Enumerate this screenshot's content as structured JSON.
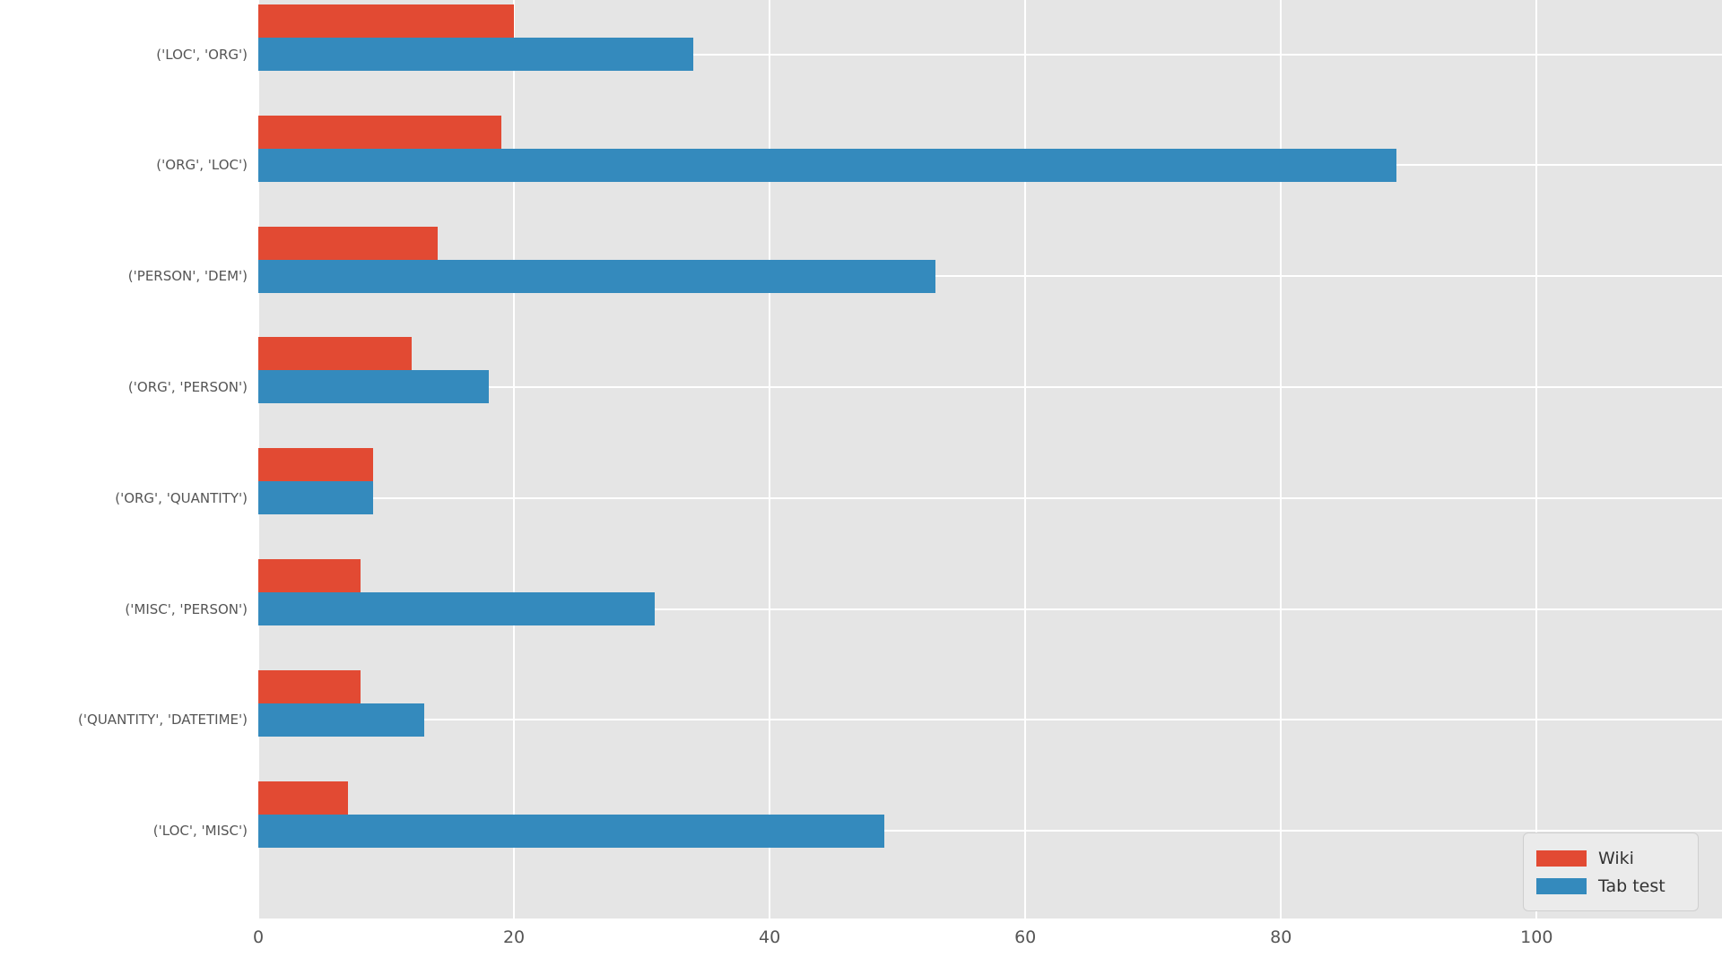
{
  "chart_data": {
    "type": "bar",
    "orientation": "horizontal",
    "title": "",
    "xlabel": "",
    "ylabel": "",
    "categories": [
      "('LOC', 'ORG')",
      "('ORG', 'LOC')",
      "('PERSON', 'DEM')",
      "('ORG', 'PERSON')",
      "('ORG', 'QUANTITY')",
      "('MISC', 'PERSON')",
      "('QUANTITY', 'DATETIME')",
      "('LOC', 'MISC')"
    ],
    "series": [
      {
        "name": "Wiki",
        "color": "#e24a33",
        "values": [
          20,
          19,
          14,
          12,
          9,
          8,
          8,
          7
        ]
      },
      {
        "name": "Tab test",
        "color": "#348abd",
        "values": [
          34,
          89,
          53,
          18,
          9,
          31,
          13,
          49
        ]
      }
    ],
    "x_ticks": [
      0,
      20,
      40,
      60,
      80,
      100
    ],
    "xlim": [
      0,
      114.5
    ],
    "grid": true,
    "legend_position": "lower right",
    "plot_background": "#e5e5e5",
    "grid_color": "#ffffff",
    "tick_label_color": "#555555"
  }
}
